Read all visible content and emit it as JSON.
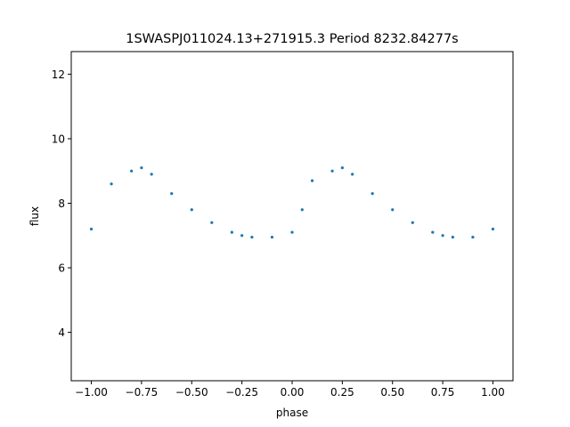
{
  "chart_data": {
    "type": "scatter",
    "title": "1SWASPJ011024.13+271915.3 Period 8232.84277s",
    "xlabel": "phase",
    "ylabel": "flux",
    "xlim": [
      -1.1,
      1.1
    ],
    "ylim": [
      2.5,
      12.7
    ],
    "x_ticks": [
      -1.0,
      -0.75,
      -0.5,
      -0.25,
      0.0,
      0.25,
      0.5,
      0.75,
      1.0
    ],
    "x_tick_labels": [
      "−1.00",
      "−0.75",
      "−0.50",
      "−0.25",
      "0.00",
      "0.25",
      "0.50",
      "0.75",
      "1.00"
    ],
    "y_ticks": [
      4,
      6,
      8,
      10,
      12
    ],
    "y_tick_labels": [
      "4",
      "6",
      "8",
      "10",
      "12"
    ],
    "grid": false,
    "legend": "none",
    "marker_color": "#1f77b4",
    "series": [
      {
        "x": [
          -1.0,
          -0.9,
          -0.8,
          -0.75,
          -0.7,
          -0.6,
          -0.5,
          -0.4,
          -0.3,
          -0.25,
          -0.2,
          -0.1,
          0.0,
          0.05,
          0.1,
          0.2,
          0.25,
          0.3,
          0.4,
          0.5,
          0.6,
          0.7,
          0.75,
          0.8,
          0.9,
          1.0
        ],
        "y": [
          7.2,
          8.6,
          9.0,
          9.1,
          8.9,
          8.3,
          7.8,
          7.4,
          7.1,
          7.0,
          6.95,
          6.95,
          7.1,
          7.8,
          8.7,
          9.0,
          9.1,
          8.9,
          8.3,
          7.8,
          7.4,
          7.1,
          7.0,
          6.95,
          6.95,
          7.2
        ]
      }
    ]
  }
}
